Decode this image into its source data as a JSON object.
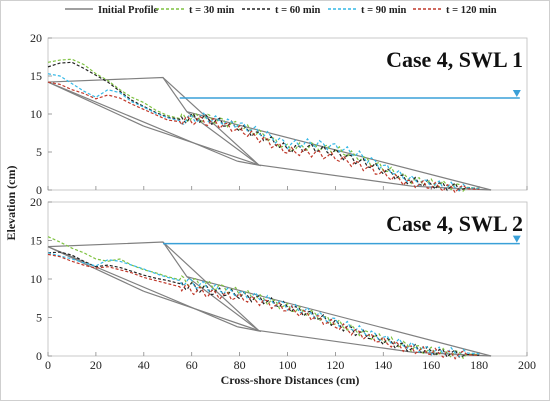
{
  "colors": {
    "initial": "#808080",
    "t30": "#7fc241",
    "t60": "#222222",
    "t90": "#35b8e6",
    "t120": "#c0392b",
    "swl": "#3aa0d8"
  },
  "legend": [
    {
      "label": "Initial Profile",
      "key": "initial",
      "dash": false
    },
    {
      "label": "t = 30 min",
      "key": "t30",
      "dash": true
    },
    {
      "label": "t = 60 min",
      "key": "t60",
      "dash": true
    },
    {
      "label": "t = 90 min",
      "key": "t90",
      "dash": true
    },
    {
      "label": "t = 120 min",
      "key": "t120",
      "dash": true
    }
  ],
  "xlabel": "Cross-shore Distances (cm)",
  "ylabel": "Elevation (cm)",
  "chart_data": [
    {
      "type": "line",
      "title": "Case 4, SWL 1",
      "xlim": [
        0,
        200
      ],
      "ylim": [
        0,
        20
      ],
      "xticks": [
        0,
        20,
        40,
        60,
        80,
        100,
        120,
        140,
        160,
        180,
        200
      ],
      "yticks": [
        0,
        5,
        10,
        15,
        20
      ],
      "swl": {
        "y": 12.1,
        "x": [
          55,
          197
        ]
      },
      "initial_profile": [
        {
          "x": [
            0,
            48,
            58,
            88,
            152,
            185
          ],
          "y": [
            14.2,
            14.8,
            10.3,
            3.3,
            0.5,
            0
          ]
        },
        {
          "x": [
            0,
            40
          ],
          "y": [
            14.2,
            8.4
          ]
        },
        {
          "x": [
            40,
            88
          ],
          "y": [
            8.4,
            3.3
          ]
        },
        {
          "x": [
            0,
            79
          ],
          "y": [
            14.2,
            3.8
          ]
        },
        {
          "x": [
            79,
            89
          ],
          "y": [
            3.8,
            3.2
          ]
        },
        {
          "x": [
            48,
            88
          ],
          "y": [
            14.8,
            3.3
          ]
        },
        {
          "x": [
            58,
            185
          ],
          "y": [
            10.3,
            0
          ]
        }
      ],
      "series": [
        {
          "name": "t = 30 min",
          "key": "t30",
          "x": [
            0,
            5,
            10,
            15,
            20,
            25,
            30,
            35,
            40,
            45,
            50,
            55,
            60,
            65,
            70,
            80,
            90,
            100,
            110,
            120,
            130,
            140,
            150,
            160,
            170,
            180
          ],
          "y": [
            16.8,
            17.1,
            17.2,
            16.5,
            15.3,
            14.4,
            13.2,
            12.2,
            11.5,
            10.5,
            9.8,
            9.4,
            9.6,
            9.5,
            9.3,
            8.4,
            7.2,
            5.5,
            5.8,
            5.3,
            4.3,
            2.9,
            1.5,
            0.9,
            0.5,
            0.2
          ]
        },
        {
          "name": "t = 60 min",
          "key": "t60",
          "x": [
            0,
            5,
            10,
            15,
            20,
            25,
            30,
            35,
            40,
            45,
            50,
            55,
            60,
            65,
            70,
            80,
            90,
            100,
            110,
            120,
            130,
            140,
            150,
            160,
            170,
            180
          ],
          "y": [
            16.2,
            16.7,
            16.8,
            16.0,
            15.1,
            14.2,
            13.0,
            11.8,
            11.0,
            10.2,
            9.6,
            9.3,
            9.5,
            9.4,
            9.1,
            8.2,
            7.0,
            5.4,
            5.6,
            4.9,
            3.8,
            2.6,
            1.3,
            0.7,
            0.4,
            0.2
          ]
        },
        {
          "name": "t = 90 min",
          "key": "t90",
          "x": [
            0,
            5,
            10,
            15,
            20,
            25,
            30,
            35,
            40,
            45,
            50,
            55,
            60,
            65,
            70,
            80,
            90,
            100,
            110,
            120,
            130,
            140,
            150,
            160,
            170,
            180
          ],
          "y": [
            15.3,
            15.0,
            14.0,
            13.0,
            12.2,
            13.2,
            12.8,
            11.6,
            10.9,
            10.1,
            9.5,
            9.1,
            9.4,
            9.6,
            9.2,
            8.6,
            7.4,
            6.0,
            6.2,
            5.7,
            4.6,
            3.1,
            1.5,
            0.8,
            0.4,
            0.2
          ]
        },
        {
          "name": "t = 120 min",
          "key": "t120",
          "x": [
            0,
            5,
            10,
            15,
            20,
            25,
            30,
            35,
            40,
            45,
            50,
            55,
            60,
            65,
            70,
            80,
            90,
            100,
            110,
            120,
            130,
            140,
            150,
            160,
            170,
            180
          ],
          "y": [
            14.2,
            13.9,
            13.2,
            12.7,
            12.0,
            12.5,
            12.1,
            11.3,
            10.6,
            9.9,
            9.2,
            9.0,
            9.2,
            9.1,
            8.8,
            7.9,
            6.6,
            5.1,
            4.9,
            4.3,
            3.3,
            2.1,
            1.0,
            0.5,
            0.2,
            0.1
          ]
        }
      ]
    },
    {
      "type": "line",
      "title": "Case 4, SWL 2",
      "xlim": [
        0,
        200
      ],
      "ylim": [
        0,
        20
      ],
      "xticks": [
        0,
        20,
        40,
        60,
        80,
        100,
        120,
        140,
        160,
        180,
        200
      ],
      "yticks": [
        0,
        5,
        10,
        15,
        20
      ],
      "swl": {
        "y": 14.6,
        "x": [
          48,
          197
        ]
      },
      "initial_profile": [
        {
          "x": [
            0,
            48,
            58,
            88,
            152,
            185
          ],
          "y": [
            14.2,
            14.8,
            10.3,
            3.3,
            0.5,
            0
          ]
        },
        {
          "x": [
            0,
            40
          ],
          "y": [
            14.2,
            8.4
          ]
        },
        {
          "x": [
            40,
            88
          ],
          "y": [
            8.4,
            3.3
          ]
        },
        {
          "x": [
            0,
            79
          ],
          "y": [
            14.2,
            3.8
          ]
        },
        {
          "x": [
            79,
            89
          ],
          "y": [
            3.8,
            3.2
          ]
        },
        {
          "x": [
            48,
            88
          ],
          "y": [
            14.8,
            3.3
          ]
        },
        {
          "x": [
            58,
            185
          ],
          "y": [
            10.3,
            0
          ]
        }
      ],
      "series": [
        {
          "name": "t = 30 min",
          "key": "t30",
          "x": [
            0,
            5,
            10,
            15,
            20,
            25,
            30,
            35,
            40,
            45,
            50,
            55,
            60,
            65,
            70,
            80,
            90,
            100,
            110,
            120,
            130,
            140,
            150,
            160,
            170,
            180
          ],
          "y": [
            15.5,
            14.8,
            14.0,
            13.4,
            12.6,
            12.3,
            12.6,
            11.8,
            11.2,
            10.8,
            10.3,
            9.9,
            9.6,
            9.3,
            9.1,
            8.3,
            7.4,
            6.3,
            5.5,
            4.3,
            3.2,
            2.2,
            1.3,
            0.6,
            0.3,
            0.2
          ]
        },
        {
          "name": "t = 60 min",
          "key": "t60",
          "x": [
            0,
            5,
            10,
            15,
            20,
            25,
            30,
            35,
            40,
            45,
            50,
            55,
            60,
            65,
            70,
            80,
            90,
            100,
            110,
            120,
            130,
            140,
            150,
            160,
            170,
            180
          ],
          "y": [
            13.4,
            13.5,
            13.1,
            12.3,
            11.6,
            11.8,
            11.5,
            11.0,
            10.5,
            10.1,
            9.8,
            9.4,
            9.0,
            8.7,
            8.4,
            7.9,
            7.3,
            6.4,
            5.4,
            4.2,
            3.0,
            2.0,
            1.1,
            0.6,
            0.3,
            0.1
          ]
        },
        {
          "name": "t = 90 min",
          "key": "t90",
          "x": [
            0,
            5,
            10,
            15,
            20,
            25,
            30,
            35,
            40,
            45,
            50,
            55,
            60,
            65,
            70,
            80,
            90,
            100,
            110,
            120,
            130,
            140,
            150,
            160,
            170,
            180
          ],
          "y": [
            13.4,
            13.0,
            12.6,
            12.1,
            11.7,
            12.5,
            12.3,
            11.8,
            11.3,
            10.7,
            10.2,
            9.8,
            9.5,
            9.1,
            8.7,
            8.1,
            7.5,
            6.5,
            5.6,
            4.5,
            3.4,
            2.3,
            1.4,
            0.7,
            0.5,
            0.3
          ]
        },
        {
          "name": "t = 120 min",
          "key": "t120",
          "x": [
            0,
            5,
            10,
            15,
            20,
            25,
            30,
            35,
            40,
            45,
            50,
            55,
            60,
            65,
            70,
            80,
            90,
            100,
            110,
            120,
            130,
            140,
            150,
            160,
            170,
            180
          ],
          "y": [
            13.2,
            12.9,
            12.3,
            11.8,
            11.4,
            11.6,
            11.2,
            10.8,
            10.2,
            9.8,
            9.4,
            9.0,
            8.6,
            8.3,
            8.0,
            7.6,
            7.0,
            6.1,
            5.2,
            4.0,
            2.9,
            1.9,
            1.0,
            0.5,
            0.2,
            0.1
          ]
        }
      ]
    }
  ]
}
